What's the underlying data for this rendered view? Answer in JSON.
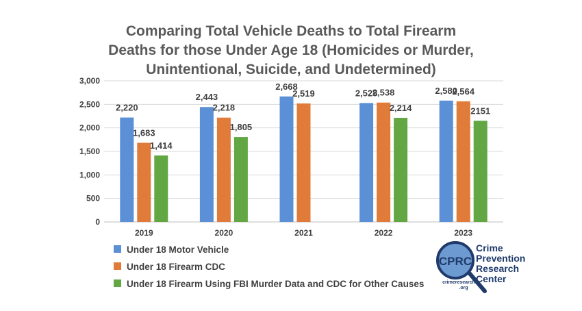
{
  "chart_data": {
    "type": "bar",
    "title_lines": [
      "Comparing Total Vehicle Deaths to Total Firearm",
      "Deaths for those Under Age 18 (Homicides or Murder,",
      "Unintentional, Suicide, and Undetermined)"
    ],
    "categories": [
      "2019",
      "2020",
      "2021",
      "2022",
      "2023"
    ],
    "ylim": [
      0,
      3000
    ],
    "yticks": [
      0,
      500,
      1000,
      1500,
      2000,
      2500,
      3000
    ],
    "ytick_labels": [
      "0",
      "500",
      "1,000",
      "1,500",
      "2,000",
      "2,500",
      "3,000"
    ],
    "grid": true,
    "legend_position": "bottom-left",
    "series": [
      {
        "name": "Under 18 Motor Vehicle",
        "color": "#5b8fd6",
        "values": [
          2220,
          2443,
          2668,
          2528,
          2580
        ],
        "labels": [
          "2,220",
          "2,443",
          "2,668",
          "2,528",
          "2,580"
        ]
      },
      {
        "name": "Under 18 Firearm CDC",
        "color": "#e07b39",
        "values": [
          1683,
          2218,
          2519,
          2538,
          2564
        ],
        "labels": [
          "1,683",
          "2,218",
          "2,519",
          "2,538",
          "2,564"
        ]
      },
      {
        "name": "Under 18 Firearm Using FBI Murder Data and CDC for Other Causes",
        "color": "#62a744",
        "values": [
          1414,
          1805,
          null,
          2214,
          2151
        ],
        "labels": [
          "1,414",
          "1,805",
          "",
          "2,214",
          "2151"
        ]
      }
    ]
  },
  "logo": {
    "abbr": "CPRC",
    "name_lines": [
      "Crime",
      "Prevention",
      "Research",
      "Center"
    ],
    "url_lines": [
      "crimeresearch",
      ".org"
    ]
  }
}
